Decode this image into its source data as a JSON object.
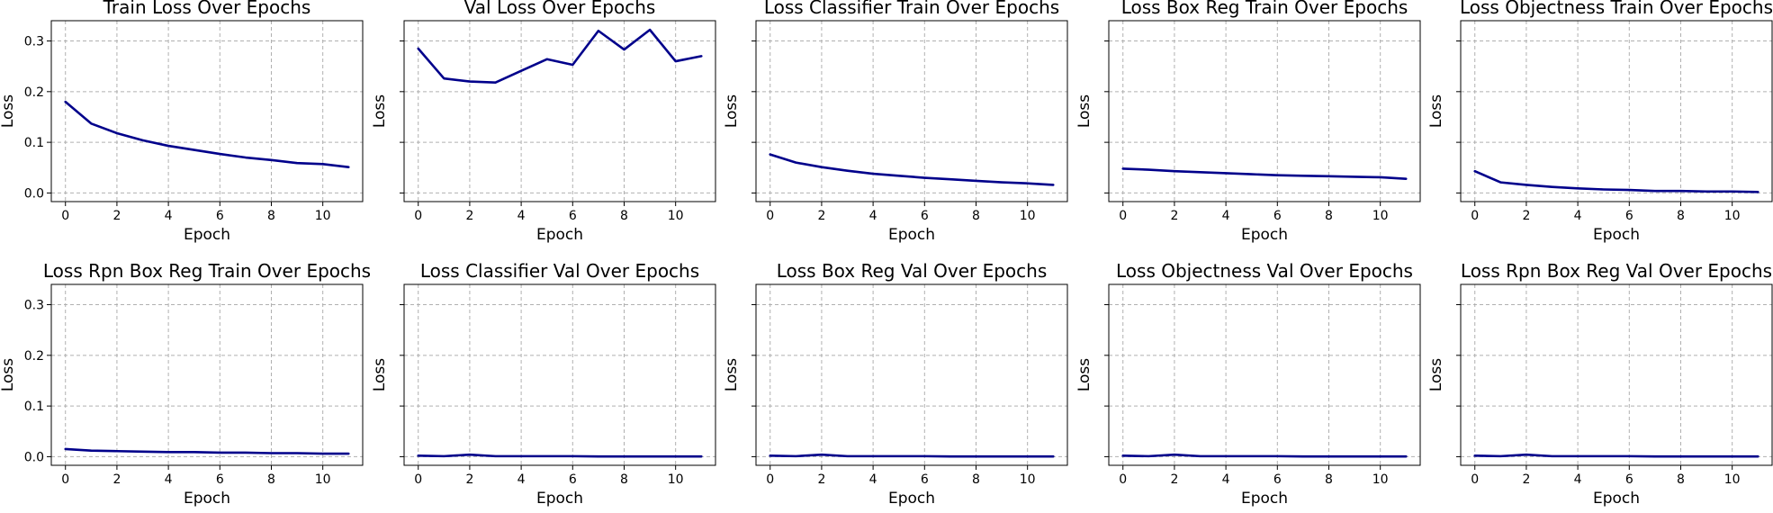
{
  "chart_data": [
    {
      "type": "line",
      "title": "Train Loss Over Epochs",
      "xlabel": "Epoch",
      "ylabel": "Loss",
      "x": [
        0,
        1,
        2,
        3,
        4,
        5,
        6,
        7,
        8,
        9,
        10,
        11
      ],
      "series": [
        {
          "values": [
            0.18,
            0.137,
            0.118,
            0.104,
            0.093,
            0.085,
            0.077,
            0.07,
            0.065,
            0.059,
            0.057,
            0.051
          ]
        }
      ],
      "xlim": [
        -0.55,
        11.55
      ],
      "ylim": [
        -0.017,
        0.34
      ],
      "xticks": [
        0,
        2,
        4,
        6,
        8,
        10
      ],
      "yticks": [
        0.0,
        0.1,
        0.2,
        0.3
      ],
      "show_yticklabels": true,
      "grid": true
    },
    {
      "type": "line",
      "title": "Val Loss Over Epochs",
      "xlabel": "Epoch",
      "ylabel": "Loss",
      "x": [
        0,
        1,
        2,
        3,
        4,
        5,
        6,
        7,
        8,
        9,
        10,
        11
      ],
      "series": [
        {
          "values": [
            0.285,
            0.226,
            0.22,
            0.218,
            0.241,
            0.264,
            0.253,
            0.32,
            0.283,
            0.322,
            0.26,
            0.27
          ]
        }
      ],
      "xlim": [
        -0.55,
        11.55
      ],
      "ylim": [
        -0.017,
        0.34
      ],
      "xticks": [
        0,
        2,
        4,
        6,
        8,
        10
      ],
      "yticks": [
        0.0,
        0.1,
        0.2,
        0.3
      ],
      "show_yticklabels": false,
      "grid": true
    },
    {
      "type": "line",
      "title": "Loss Classifier Train Over Epochs",
      "xlabel": "Epoch",
      "ylabel": "Loss",
      "x": [
        0,
        1,
        2,
        3,
        4,
        5,
        6,
        7,
        8,
        9,
        10,
        11
      ],
      "series": [
        {
          "values": [
            0.076,
            0.06,
            0.051,
            0.044,
            0.038,
            0.034,
            0.03,
            0.027,
            0.024,
            0.021,
            0.019,
            0.016
          ]
        }
      ],
      "xlim": [
        -0.55,
        11.55
      ],
      "ylim": [
        -0.017,
        0.34
      ],
      "xticks": [
        0,
        2,
        4,
        6,
        8,
        10
      ],
      "yticks": [
        0.0,
        0.1,
        0.2,
        0.3
      ],
      "show_yticklabels": false,
      "grid": true
    },
    {
      "type": "line",
      "title": "Loss Box Reg Train Over Epochs",
      "xlabel": "Epoch",
      "ylabel": "Loss",
      "x": [
        0,
        1,
        2,
        3,
        4,
        5,
        6,
        7,
        8,
        9,
        10,
        11
      ],
      "series": [
        {
          "values": [
            0.048,
            0.046,
            0.043,
            0.041,
            0.039,
            0.037,
            0.035,
            0.034,
            0.033,
            0.032,
            0.031,
            0.028
          ]
        }
      ],
      "xlim": [
        -0.55,
        11.55
      ],
      "ylim": [
        -0.017,
        0.34
      ],
      "xticks": [
        0,
        2,
        4,
        6,
        8,
        10
      ],
      "yticks": [
        0.0,
        0.1,
        0.2,
        0.3
      ],
      "show_yticklabels": false,
      "grid": true
    },
    {
      "type": "line",
      "title": "Loss Objectness Train Over Epochs",
      "xlabel": "Epoch",
      "ylabel": "Loss",
      "x": [
        0,
        1,
        2,
        3,
        4,
        5,
        6,
        7,
        8,
        9,
        10,
        11
      ],
      "series": [
        {
          "values": [
            0.043,
            0.021,
            0.016,
            0.012,
            0.009,
            0.007,
            0.006,
            0.004,
            0.004,
            0.003,
            0.003,
            0.002
          ]
        }
      ],
      "xlim": [
        -0.55,
        11.55
      ],
      "ylim": [
        -0.017,
        0.34
      ],
      "xticks": [
        0,
        2,
        4,
        6,
        8,
        10
      ],
      "yticks": [
        0.0,
        0.1,
        0.2,
        0.3
      ],
      "show_yticklabels": false,
      "grid": true
    },
    {
      "type": "line",
      "title": "Loss Rpn Box Reg Train Over Epochs",
      "xlabel": "Epoch",
      "ylabel": "Loss",
      "x": [
        0,
        1,
        2,
        3,
        4,
        5,
        6,
        7,
        8,
        9,
        10,
        11
      ],
      "series": [
        {
          "values": [
            0.015,
            0.012,
            0.011,
            0.01,
            0.009,
            0.009,
            0.008,
            0.008,
            0.007,
            0.007,
            0.006,
            0.006
          ]
        }
      ],
      "xlim": [
        -0.55,
        11.55
      ],
      "ylim": [
        -0.017,
        0.34
      ],
      "xticks": [
        0,
        2,
        4,
        6,
        8,
        10
      ],
      "yticks": [
        0.0,
        0.1,
        0.2,
        0.3
      ],
      "show_yticklabels": true,
      "grid": true
    },
    {
      "type": "line",
      "title": "Loss Classifier Val Over Epochs",
      "xlabel": "Epoch",
      "ylabel": "Loss",
      "x": [
        0,
        1,
        2,
        3,
        4,
        5,
        6,
        7,
        8,
        9,
        10,
        11
      ],
      "series": [
        {
          "values": [
            0.002,
            0.001,
            0.004,
            0.001,
            0.001,
            0.001,
            0.001,
            0.0005,
            0.0005,
            0.0005,
            0.0005,
            0.0005
          ]
        }
      ],
      "xlim": [
        -0.55,
        11.55
      ],
      "ylim": [
        -0.017,
        0.34
      ],
      "xticks": [
        0,
        2,
        4,
        6,
        8,
        10
      ],
      "yticks": [
        0.0,
        0.1,
        0.2,
        0.3
      ],
      "show_yticklabels": false,
      "grid": true
    },
    {
      "type": "line",
      "title": "Loss Box Reg Val Over Epochs",
      "xlabel": "Epoch",
      "ylabel": "Loss",
      "x": [
        0,
        1,
        2,
        3,
        4,
        5,
        6,
        7,
        8,
        9,
        10,
        11
      ],
      "series": [
        {
          "values": [
            0.002,
            0.001,
            0.004,
            0.001,
            0.001,
            0.001,
            0.001,
            0.0005,
            0.0005,
            0.0005,
            0.0005,
            0.0005
          ]
        }
      ],
      "xlim": [
        -0.55,
        11.55
      ],
      "ylim": [
        -0.017,
        0.34
      ],
      "xticks": [
        0,
        2,
        4,
        6,
        8,
        10
      ],
      "yticks": [
        0.0,
        0.1,
        0.2,
        0.3
      ],
      "show_yticklabels": false,
      "grid": true
    },
    {
      "type": "line",
      "title": "Loss Objectness Val Over Epochs",
      "xlabel": "Epoch",
      "ylabel": "Loss",
      "x": [
        0,
        1,
        2,
        3,
        4,
        5,
        6,
        7,
        8,
        9,
        10,
        11
      ],
      "series": [
        {
          "values": [
            0.002,
            0.001,
            0.004,
            0.001,
            0.001,
            0.001,
            0.001,
            0.0005,
            0.0005,
            0.0005,
            0.0005,
            0.0005
          ]
        }
      ],
      "xlim": [
        -0.55,
        11.55
      ],
      "ylim": [
        -0.017,
        0.34
      ],
      "xticks": [
        0,
        2,
        4,
        6,
        8,
        10
      ],
      "yticks": [
        0.0,
        0.1,
        0.2,
        0.3
      ],
      "show_yticklabels": false,
      "grid": true
    },
    {
      "type": "line",
      "title": "Loss Rpn Box Reg Val Over Epochs",
      "xlabel": "Epoch",
      "ylabel": "Loss",
      "x": [
        0,
        1,
        2,
        3,
        4,
        5,
        6,
        7,
        8,
        9,
        10,
        11
      ],
      "series": [
        {
          "values": [
            0.002,
            0.001,
            0.004,
            0.001,
            0.001,
            0.001,
            0.001,
            0.0005,
            0.0005,
            0.0005,
            0.0005,
            0.0005
          ]
        }
      ],
      "xlim": [
        -0.55,
        11.55
      ],
      "ylim": [
        -0.017,
        0.34
      ],
      "xticks": [
        0,
        2,
        4,
        6,
        8,
        10
      ],
      "yticks": [
        0.0,
        0.1,
        0.2,
        0.3
      ],
      "show_yticklabels": false,
      "grid": true
    }
  ],
  "colors": {
    "line": "#00008b",
    "grid": "#b0b0b0",
    "frame": "#000000",
    "background": "#ffffff"
  }
}
